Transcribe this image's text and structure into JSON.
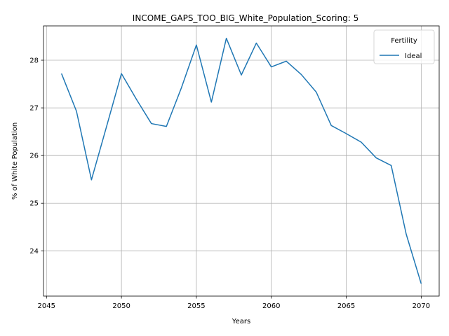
{
  "chart_data": {
    "type": "line",
    "title": "INCOME_GAPS_TOO_BIG_White_Population_Scoring: 5",
    "xlabel": "Years",
    "ylabel": "% of White Population",
    "xlim": [
      2044.8,
      2071.2
    ],
    "ylim": [
      23.05,
      28.72
    ],
    "xticks": [
      2045,
      2050,
      2055,
      2060,
      2065,
      2070
    ],
    "yticks": [
      24,
      25,
      26,
      27,
      28
    ],
    "grid": true,
    "legend": {
      "title": "Fertility",
      "placement": "upper right"
    },
    "series": [
      {
        "name": "Ideal",
        "color": "#1f77b4",
        "x": [
          2046,
          2047,
          2048,
          2049,
          2050,
          2051,
          2052,
          2053,
          2054,
          2055,
          2056,
          2057,
          2058,
          2059,
          2060,
          2061,
          2062,
          2063,
          2064,
          2065,
          2066,
          2067,
          2068,
          2069,
          2070
        ],
        "y": [
          27.72,
          26.93,
          25.49,
          26.6,
          27.72,
          27.18,
          26.67,
          26.61,
          27.42,
          28.32,
          27.12,
          28.46,
          27.69,
          28.36,
          27.86,
          27.98,
          27.7,
          27.33,
          26.63,
          26.46,
          26.28,
          25.95,
          25.79,
          24.35,
          23.31
        ]
      }
    ]
  }
}
